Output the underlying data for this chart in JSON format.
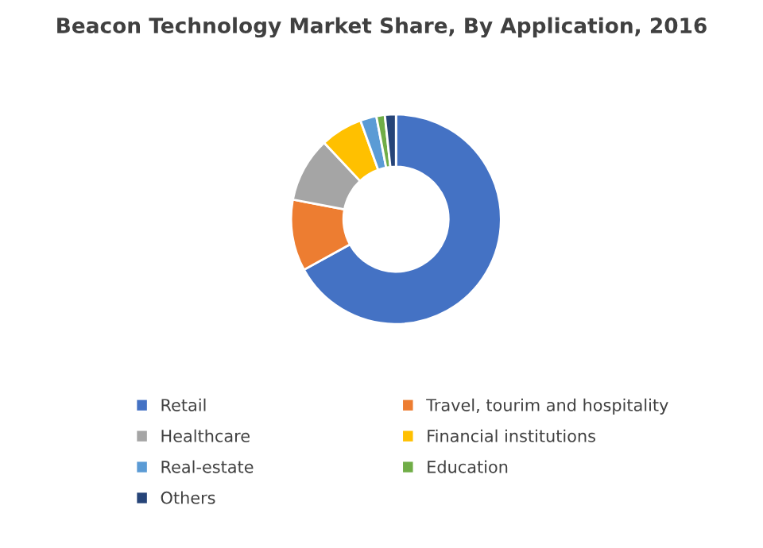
{
  "chart_data": {
    "type": "donut",
    "title": "Beacon Technology Market Share, By Application, 2016",
    "categories": [
      "Retail",
      "Travel, tourim and hospitality",
      "Healthcare",
      "Financial institutions",
      "Real-estate",
      "Education",
      "Others"
    ],
    "values": [
      67,
      11,
      10,
      6.5,
      2.5,
      1.3,
      1.7
    ],
    "colors": [
      "#4472c4",
      "#ed7d31",
      "#a5a5a5",
      "#ffc000",
      "#5b9bd5",
      "#70ad47",
      "#264478"
    ],
    "legend": "bottom"
  }
}
